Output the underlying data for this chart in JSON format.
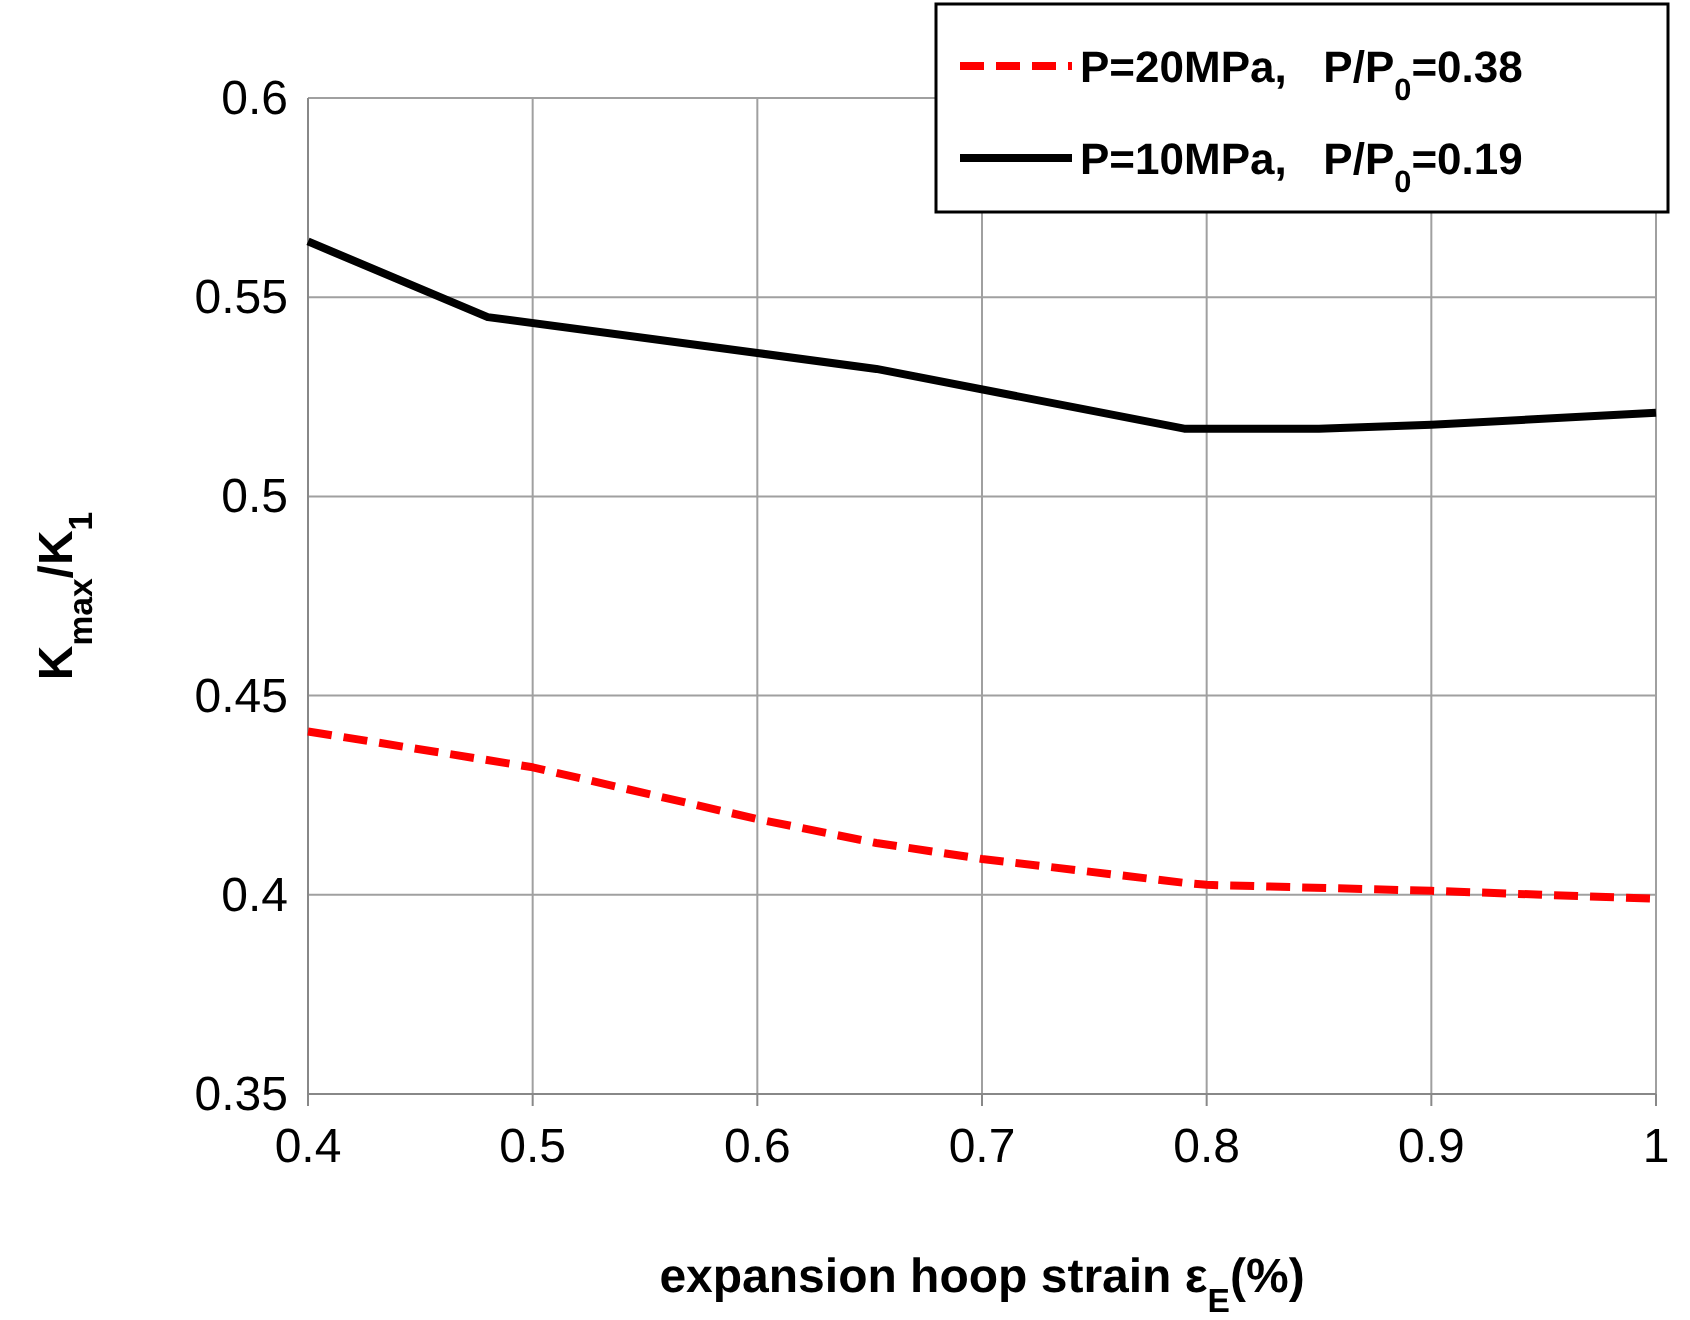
{
  "chart_data": {
    "type": "line",
    "xlabel": "expansion hoop  strain  ε$_{E}$(%)",
    "ylabel": "K$_{max}$/K$_{1}$",
    "xlim": [
      0.4,
      1
    ],
    "xticks": [
      0.4,
      0.5,
      0.6,
      0.7,
      0.8,
      0.9,
      1
    ],
    "ylim": [
      0.35,
      0.6
    ],
    "yticks": [
      0.35,
      0.4,
      0.45,
      0.5,
      0.55,
      0.6
    ],
    "grid": true,
    "legend": "top right",
    "series": [
      {
        "name": "P=20MPa,   P/P$_{0}$=0.38",
        "color": "#ff0000",
        "line_style": "dashed",
        "x": [
          0.4,
          0.5,
          0.6,
          0.653,
          0.7,
          0.79,
          0.8,
          0.9,
          1
        ],
        "values": [
          0.441,
          0.432,
          0.419,
          0.413,
          0.409,
          0.403,
          0.4025,
          0.401,
          0.399
        ]
      },
      {
        "name": "P=10MPa,   P/P$_{0}$=0.19",
        "color": "#000000",
        "line_style": "solid",
        "x": [
          0.4,
          0.48,
          0.6,
          0.653,
          0.79,
          0.85,
          0.9,
          1
        ],
        "values": [
          0.564,
          0.545,
          0.536,
          0.532,
          0.517,
          0.517,
          0.518,
          0.521
        ]
      }
    ]
  }
}
